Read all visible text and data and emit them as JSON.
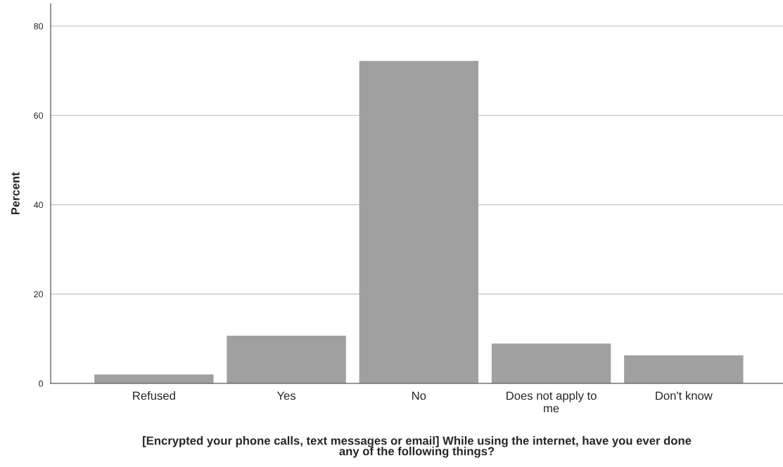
{
  "chart_data": {
    "type": "bar",
    "categories": [
      "Refused",
      "Yes",
      "No",
      "Does not apply to me",
      "Don't know"
    ],
    "values": [
      2.0,
      10.7,
      72.2,
      8.9,
      6.3
    ],
    "color": "#a0a0a0",
    "xlabel": "[Encrypted your phone calls, text messages or email] While using the internet, have you ever done any of the following things?",
    "ylabel": "Percent",
    "ylim": [
      0,
      85
    ],
    "yticks": [
      0,
      20,
      40,
      60,
      80
    ],
    "grid": "y"
  }
}
